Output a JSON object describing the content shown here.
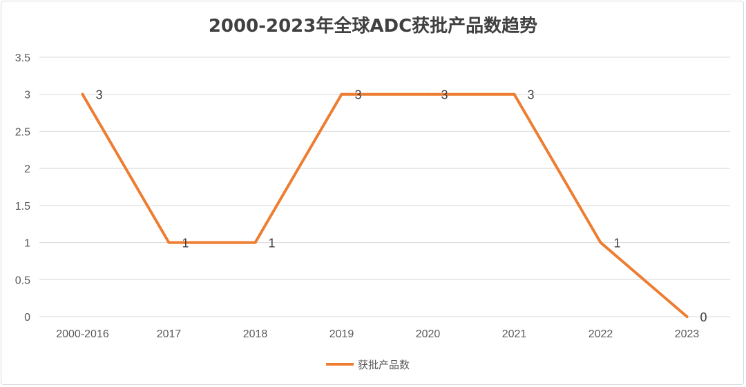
{
  "chart_data": {
    "type": "line",
    "title": "2000-2023年全球ADC获批产品数趋势",
    "xlabel": "",
    "ylabel": "",
    "categories": [
      "2000-2016",
      "2017",
      "2018",
      "2019",
      "2020",
      "2021",
      "2022",
      "2023"
    ],
    "series": [
      {
        "name": "获批产品数",
        "values": [
          3,
          1,
          1,
          3,
          3,
          3,
          1,
          0
        ],
        "color": "#ed7d31"
      }
    ],
    "ylim": [
      0,
      3.5
    ],
    "yticks": [
      "0",
      "0.5",
      "1",
      "1.5",
      "2",
      "2.5",
      "3",
      "3.5"
    ],
    "data_labels": [
      "3",
      "1",
      "1",
      "3",
      "3",
      "3",
      "1",
      "0"
    ],
    "grid": true,
    "legend_position": "bottom"
  }
}
